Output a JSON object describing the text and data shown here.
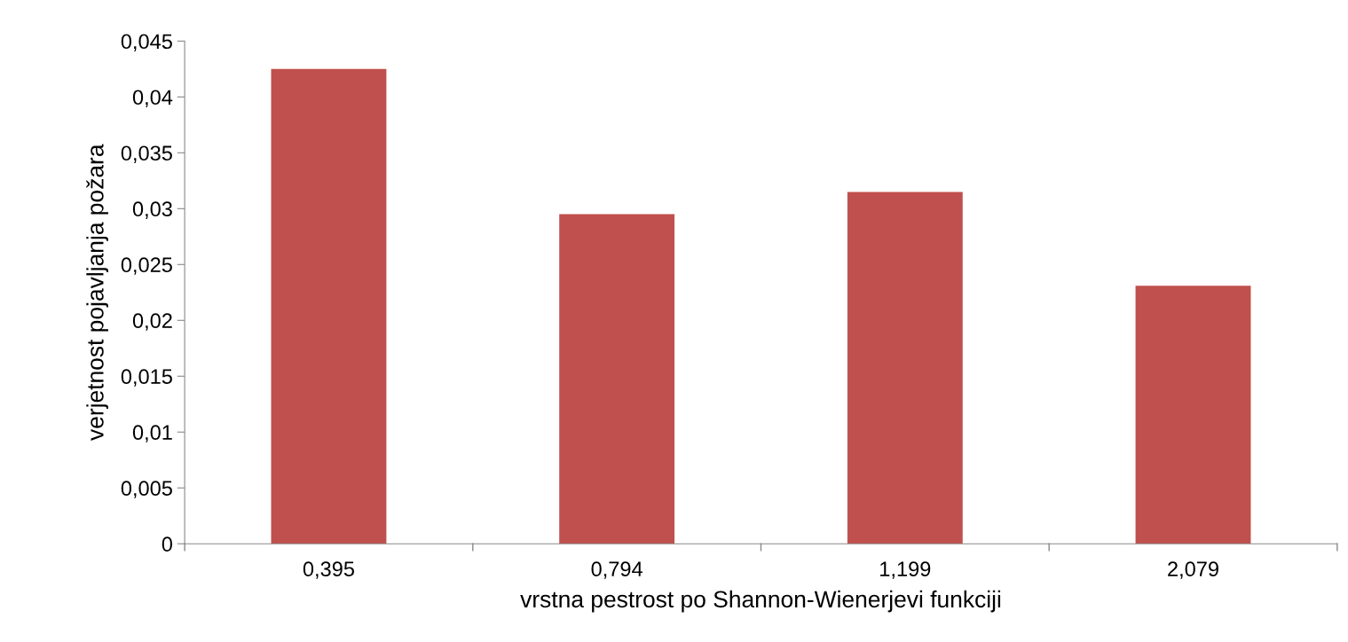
{
  "chart_data": {
    "type": "bar",
    "xlabel": "vrstna pestrost po Shannon-Wienerjevi funkciji",
    "ylabel": "verjetnost pojavljanja požara",
    "categories": [
      "0,395",
      "0,794",
      "1,199",
      "2,079"
    ],
    "values": [
      0.0425,
      0.0295,
      0.0315,
      0.0231
    ],
    "color": "#c0504d",
    "ylim": [
      0,
      0.045
    ],
    "yticks": [
      0,
      {
        "value": 0.005,
        "label": "0,005"
      },
      {
        "value": 0.01,
        "label": "0,01"
      },
      {
        "value": 0.015,
        "label": "0,015"
      },
      {
        "value": 0.02,
        "label": "0,02"
      },
      {
        "value": 0.025,
        "label": "0,025"
      },
      {
        "value": 0.03,
        "label": "0,03"
      },
      {
        "value": 0.035,
        "label": "0,035"
      },
      {
        "value": 0.04,
        "label": "0,04"
      },
      {
        "value": 0.045,
        "label": "0,045"
      }
    ],
    "grid": false,
    "legend": false
  }
}
